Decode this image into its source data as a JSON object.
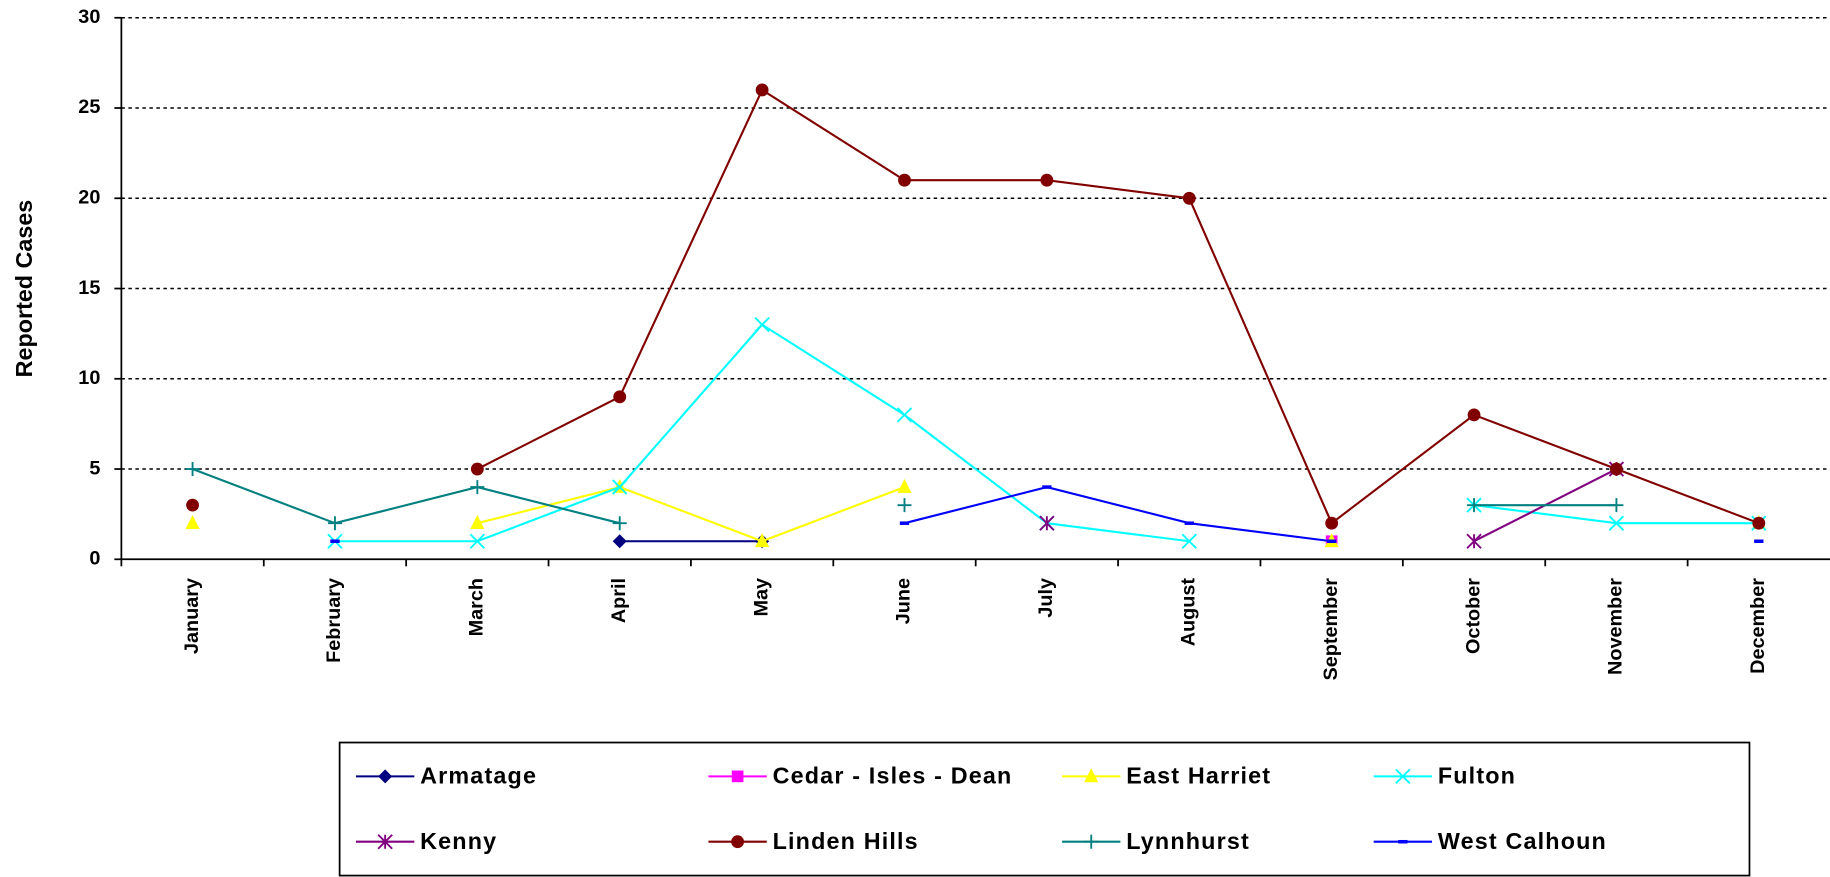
{
  "chart_data": {
    "type": "line",
    "y_label": "Reported Cases",
    "categories": [
      "January",
      "February",
      "March",
      "April",
      "May",
      "June",
      "July",
      "August",
      "September",
      "October",
      "November",
      "December"
    ],
    "ylim": [
      0,
      30
    ],
    "yticks": [
      0,
      5,
      10,
      15,
      20,
      25,
      30
    ],
    "grid": true,
    "series": [
      {
        "name": "Armatage",
        "color": "#000080",
        "marker": "diamond",
        "values": [
          null,
          null,
          null,
          1,
          1,
          null,
          null,
          null,
          null,
          null,
          null,
          null
        ]
      },
      {
        "name": "Cedar - Isles - Dean",
        "color": "#ff00ff",
        "marker": "square",
        "values": [
          null,
          null,
          null,
          null,
          null,
          null,
          null,
          null,
          1,
          null,
          null,
          null
        ]
      },
      {
        "name": "East Harriet",
        "color": "#ffff00",
        "marker": "triangle",
        "values": [
          2,
          null,
          2,
          4,
          1,
          4,
          null,
          null,
          1,
          null,
          null,
          2
        ]
      },
      {
        "name": "Fulton",
        "color": "#00ffff",
        "marker": "x",
        "values": [
          null,
          1,
          1,
          4,
          13,
          8,
          2,
          1,
          null,
          3,
          2,
          2
        ]
      },
      {
        "name": "Kenny",
        "color": "#800080",
        "marker": "star",
        "values": [
          null,
          null,
          null,
          null,
          null,
          null,
          2,
          null,
          null,
          1,
          5,
          null
        ]
      },
      {
        "name": "Linden Hills",
        "color": "#800000",
        "marker": "circle",
        "values": [
          3,
          null,
          5,
          9,
          26,
          21,
          21,
          20,
          2,
          8,
          5,
          2
        ]
      },
      {
        "name": "Lynnhurst",
        "color": "#008080",
        "marker": "plus",
        "values": [
          5,
          2,
          4,
          2,
          null,
          3,
          null,
          null,
          null,
          3,
          3,
          null
        ]
      },
      {
        "name": "West Calhoun",
        "color": "#0000ff",
        "marker": "dash",
        "values": [
          null,
          1,
          null,
          null,
          null,
          2,
          4,
          2,
          1,
          null,
          null,
          1
        ]
      }
    ]
  }
}
